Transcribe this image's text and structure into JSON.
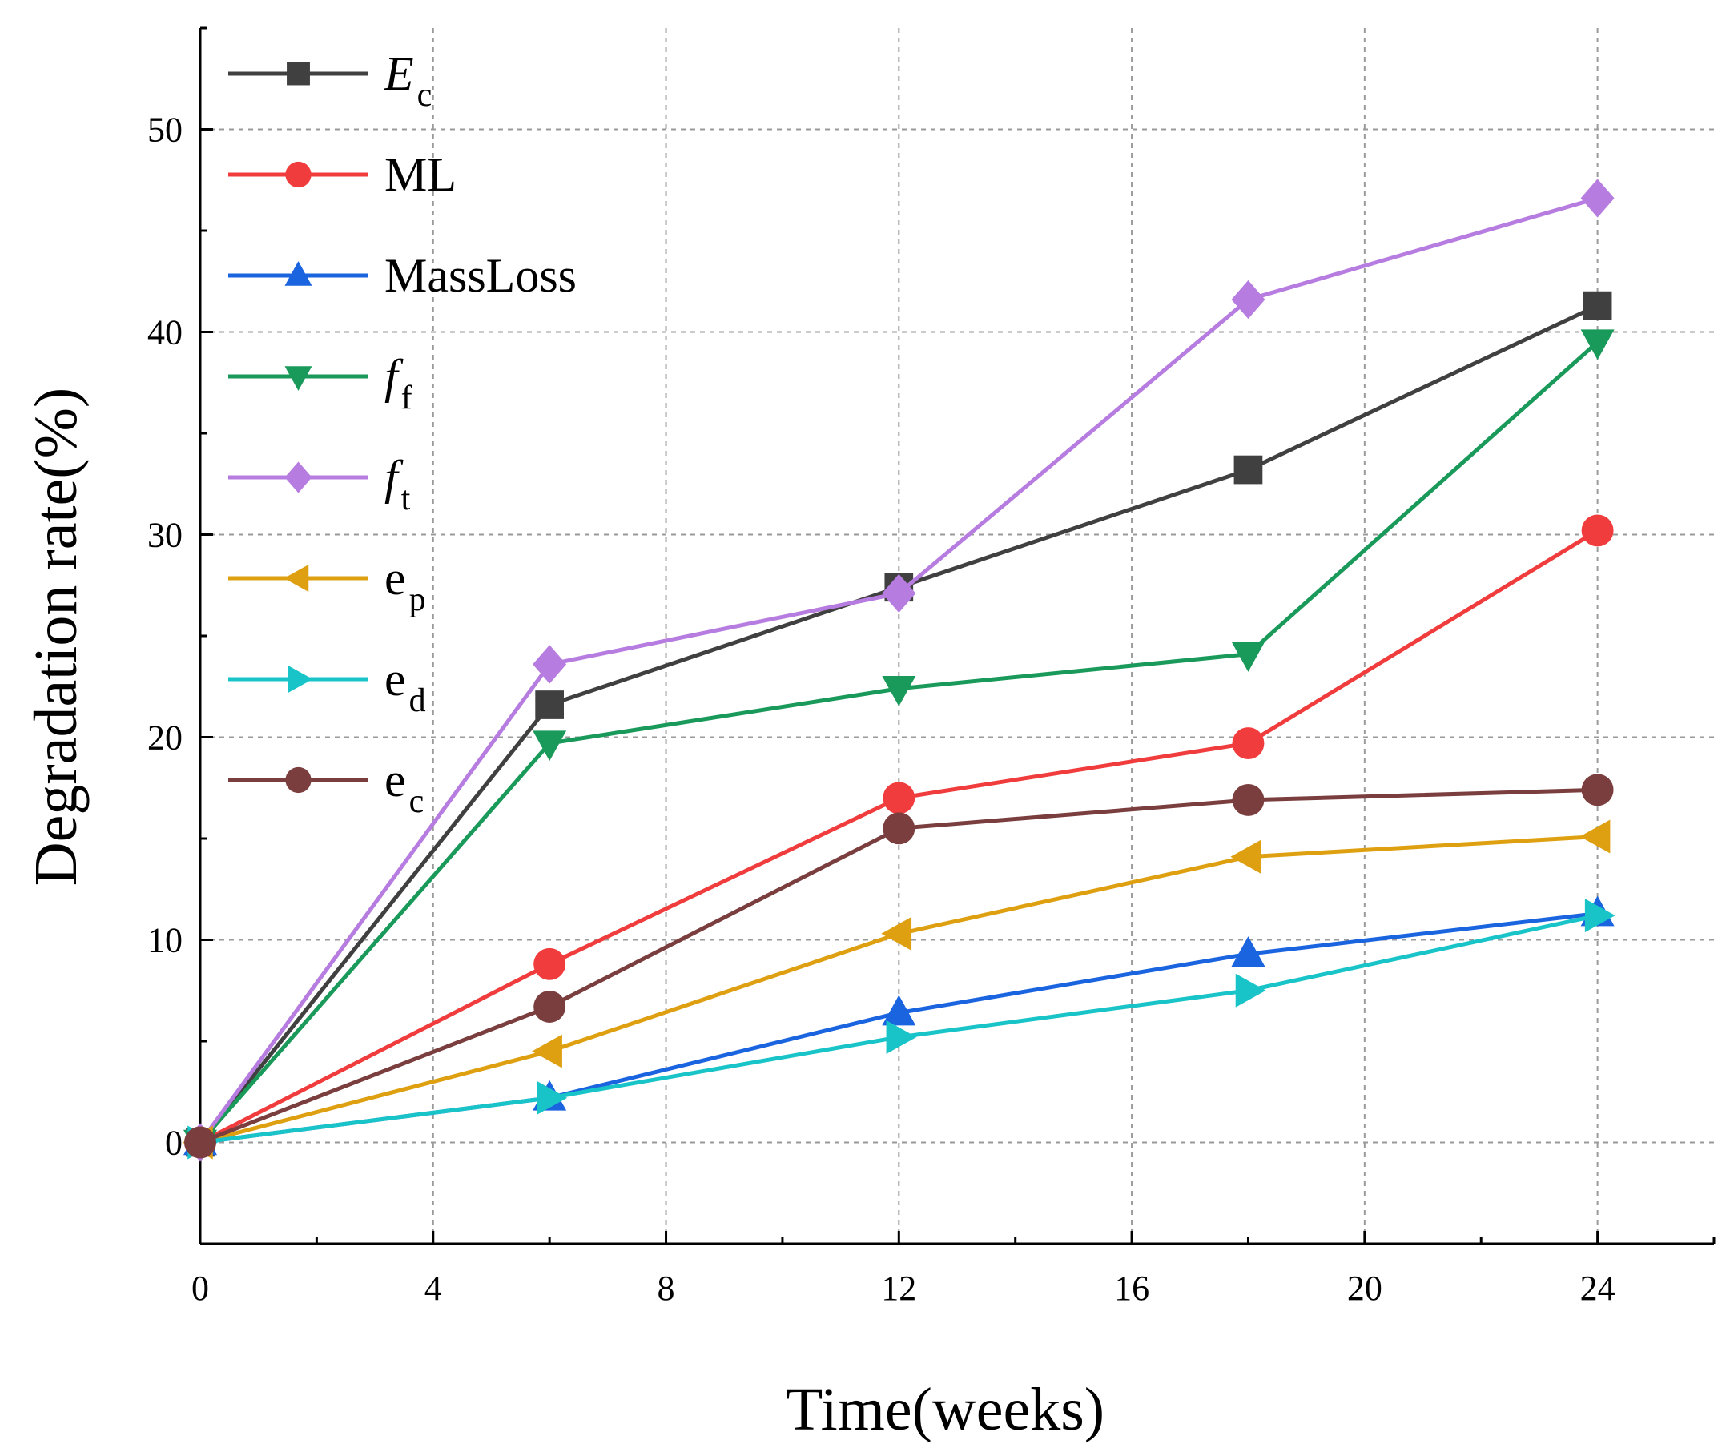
{
  "chart_data": {
    "type": "line",
    "title": "",
    "xlabel": "Time(weeks)",
    "ylabel": "Degradation rate(%)",
    "xlim": [
      0,
      26
    ],
    "ylim": [
      -5,
      55
    ],
    "x_ticks": [
      0,
      4,
      8,
      12,
      16,
      20,
      24
    ],
    "y_ticks": [
      0,
      10,
      20,
      30,
      40,
      50
    ],
    "x_tick_labels": [
      "0",
      "4",
      "8",
      "12",
      "16",
      "20",
      "24"
    ],
    "y_tick_labels": [
      "0",
      "10",
      "20",
      "30",
      "40",
      "50"
    ],
    "grid": true,
    "legend_position": "top-left",
    "x": [
      0,
      6,
      12,
      18,
      24
    ],
    "series": [
      {
        "name": "Ec",
        "label_main": "E",
        "label_sub": "c",
        "italic": true,
        "color": "#404040",
        "marker": "square",
        "values": [
          0,
          21.6,
          27.4,
          33.2,
          41.3
        ]
      },
      {
        "name": "ML",
        "label_main": "ML",
        "label_sub": "",
        "italic": false,
        "color": "#f03c3c",
        "marker": "circle",
        "values": [
          0,
          8.8,
          17.0,
          19.7,
          30.2
        ]
      },
      {
        "name": "MassLoss",
        "label_main": "MassLoss",
        "label_sub": "",
        "italic": false,
        "color": "#1a64e0",
        "marker": "triangle-up",
        "values": [
          0,
          2.2,
          6.4,
          9.3,
          11.3
        ]
      },
      {
        "name": "ff",
        "label_main": "f",
        "label_sub": "f",
        "italic": true,
        "color": "#1a9a5a",
        "marker": "triangle-down",
        "values": [
          0,
          19.7,
          22.4,
          24.1,
          39.5
        ]
      },
      {
        "name": "ft",
        "label_main": "f",
        "label_sub": "t",
        "italic": true,
        "color": "#b77ce0",
        "marker": "diamond",
        "values": [
          0,
          23.6,
          27.1,
          41.6,
          46.6
        ]
      },
      {
        "name": "ep",
        "label_main": "e",
        "label_sub": "p",
        "italic": false,
        "color": "#dea010",
        "marker": "triangle-left",
        "values": [
          0,
          4.5,
          10.3,
          14.1,
          15.1
        ]
      },
      {
        "name": "ed",
        "label_main": "e",
        "label_sub": "d",
        "italic": false,
        "color": "#18c4c8",
        "marker": "triangle-right",
        "values": [
          0,
          2.2,
          5.2,
          7.5,
          11.2
        ]
      },
      {
        "name": "ec",
        "label_main": "e",
        "label_sub": "c",
        "italic": false,
        "color": "#7b3e3e",
        "marker": "circle",
        "values": [
          0,
          6.7,
          15.5,
          16.9,
          17.4
        ]
      }
    ]
  }
}
